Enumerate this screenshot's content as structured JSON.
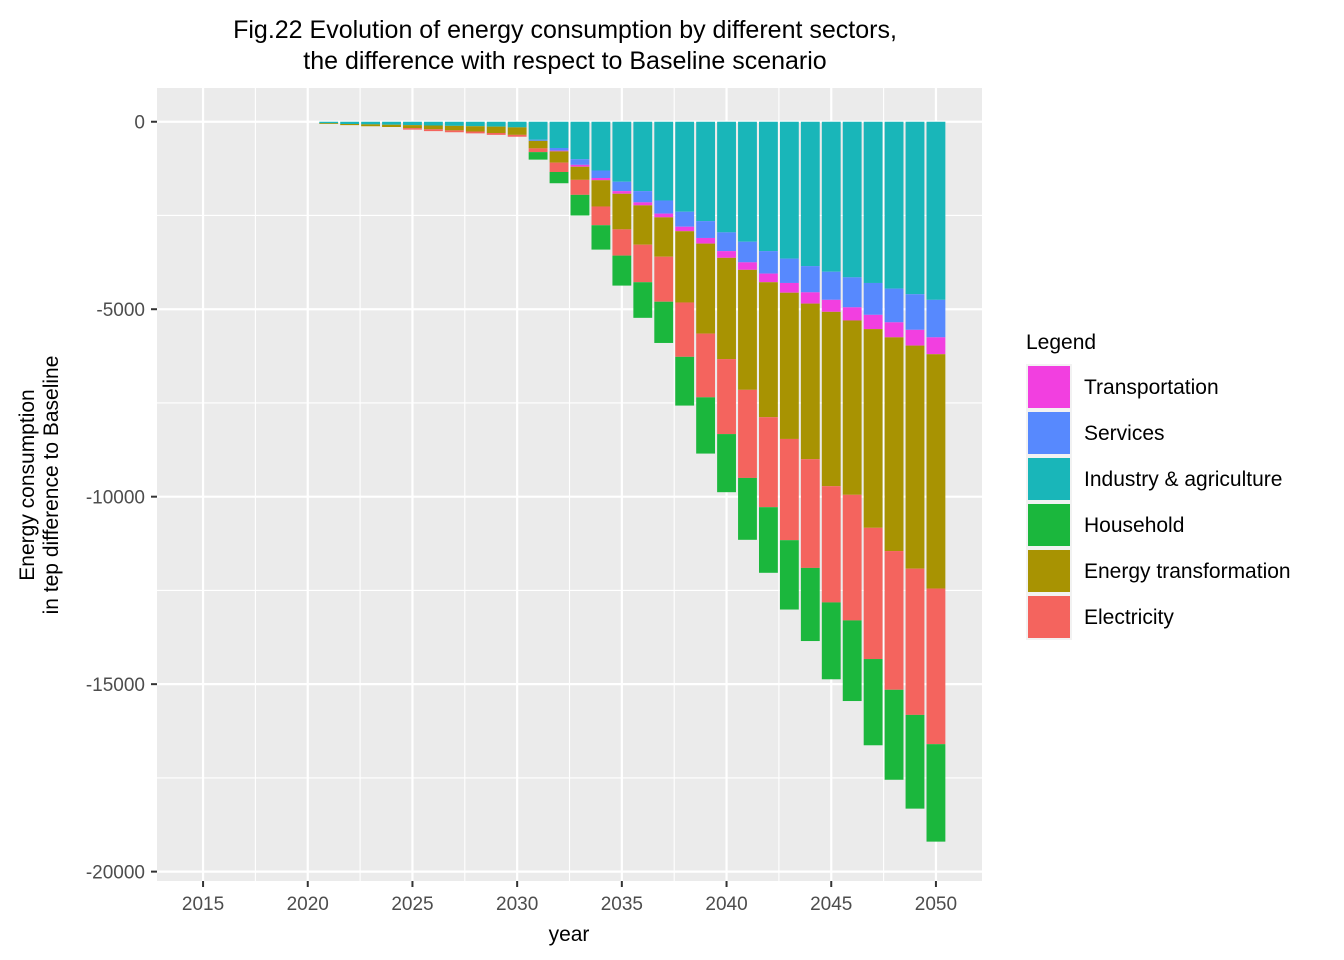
{
  "chart_data": {
    "type": "bar",
    "stacked": true,
    "title": [
      "Fig.22 Evolution of energy consumption by different sectors,",
      "the difference with respect to Baseline scenario"
    ],
    "xlabel": "year",
    "ylabel": [
      "Energy consumption",
      "in tep difference to Baseline"
    ],
    "xlim": [
      2012.8,
      2052.2
    ],
    "ylim": [
      -20250,
      900
    ],
    "x_ticks": [
      "2015",
      "2020",
      "2025",
      "2030",
      "2035",
      "2040",
      "2045",
      "2050"
    ],
    "x_tick_values": [
      2015,
      2020,
      2025,
      2030,
      2035,
      2040,
      2045,
      2050
    ],
    "y_ticks": [
      "0",
      "-5000",
      "-10000",
      "-15000",
      "-20000"
    ],
    "y_tick_values": [
      0,
      -5000,
      -10000,
      -15000,
      -20000
    ],
    "grid": true,
    "legend": {
      "title": "Legend",
      "position": "right",
      "entries": [
        "Transportation",
        "Services",
        "Industry & agriculture",
        "Household",
        "Energy transformation",
        "Electricity"
      ]
    },
    "colors": {
      "Transportation": "#f23fe0",
      "Services": "#5789fe",
      "Industry & agriculture": "#19b6b9",
      "Household": "#1bb73d",
      "Energy transformation": "#a89302",
      "Electricity": "#f4645e"
    },
    "stack_order": [
      "Industry & agriculture",
      "Services",
      "Transportation",
      "Energy transformation",
      "Electricity",
      "Household"
    ],
    "x": [
      2021,
      2022,
      2023,
      2024,
      2025,
      2026,
      2027,
      2028,
      2029,
      2030,
      2031,
      2032,
      2033,
      2034,
      2035,
      2036,
      2037,
      2038,
      2039,
      2040,
      2041,
      2042,
      2043,
      2044,
      2045,
      2046,
      2047,
      2048,
      2049,
      2050
    ],
    "series": [
      {
        "name": "Industry & agriculture",
        "values": [
          -40,
          -60,
          -70,
          -80,
          -90,
          -100,
          -110,
          -120,
          -130,
          -150,
          -480,
          -700,
          -1000,
          -1300,
          -1600,
          -1850,
          -2100,
          -2400,
          -2650,
          -2950,
          -3200,
          -3450,
          -3650,
          -3850,
          -4000,
          -4150,
          -4300,
          -4450,
          -4600,
          -4750
        ]
      },
      {
        "name": "Services",
        "values": [
          0,
          0,
          0,
          0,
          0,
          0,
          0,
          0,
          0,
          0,
          -30,
          -70,
          -150,
          -200,
          -250,
          -300,
          -350,
          -400,
          -450,
          -500,
          -550,
          -600,
          -650,
          -700,
          -750,
          -800,
          -850,
          -900,
          -950,
          -1000
        ]
      },
      {
        "name": "Transportation",
        "values": [
          0,
          0,
          0,
          0,
          0,
          0,
          0,
          0,
          0,
          0,
          0,
          -20,
          -50,
          -60,
          -70,
          -80,
          -100,
          -120,
          -150,
          -180,
          -200,
          -230,
          -260,
          -300,
          -320,
          -350,
          -380,
          -400,
          -420,
          -450
        ]
      },
      {
        "name": "Energy transformation",
        "values": [
          -20,
          -30,
          -50,
          -60,
          -80,
          -100,
          -120,
          -140,
          -170,
          -200,
          -200,
          -300,
          -350,
          -700,
          -950,
          -1050,
          -1050,
          -1900,
          -2400,
          -2700,
          -3200,
          -3600,
          -3900,
          -4150,
          -4650,
          -4650,
          -5300,
          -5700,
          -5950,
          -6250
        ]
      },
      {
        "name": "Electricity",
        "values": [
          0,
          0,
          0,
          0,
          -40,
          -50,
          -50,
          -50,
          -50,
          -50,
          -100,
          -250,
          -400,
          -500,
          -700,
          -1000,
          -1200,
          -1450,
          -1700,
          -2000,
          -2350,
          -2400,
          -2700,
          -2900,
          -3100,
          -3350,
          -3500,
          -3700,
          -3900,
          -4150
        ]
      },
      {
        "name": "Household",
        "values": [
          0,
          0,
          0,
          0,
          0,
          0,
          0,
          0,
          0,
          0,
          -200,
          -300,
          -550,
          -650,
          -800,
          -950,
          -1100,
          -1300,
          -1500,
          -1550,
          -1650,
          -1750,
          -1850,
          -1950,
          -2050,
          -2150,
          -2300,
          -2400,
          -2500,
          -2600
        ]
      }
    ]
  }
}
